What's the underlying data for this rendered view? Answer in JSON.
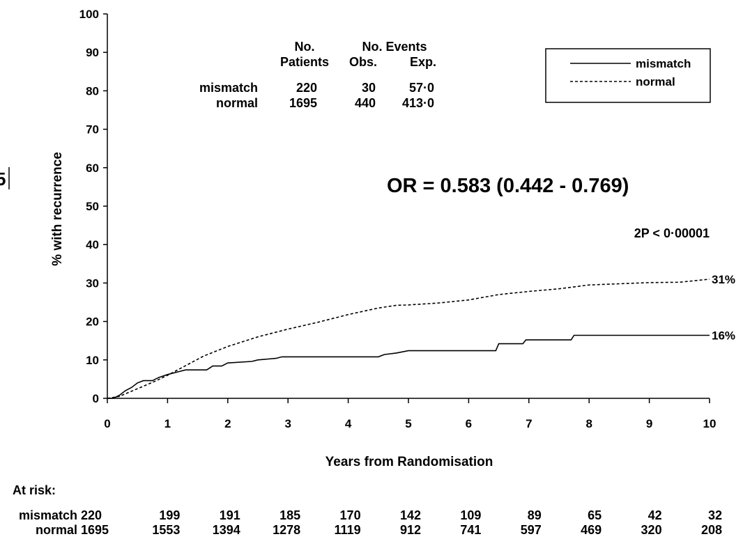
{
  "chart_data": {
    "type": "line",
    "title": "",
    "xlabel": "Years from Randomisation",
    "ylabel": "% with recurrence",
    "xlim": [
      0,
      10
    ],
    "ylim": [
      0,
      100
    ],
    "x_ticks": [
      "0",
      "1",
      "2",
      "3",
      "4",
      "5",
      "6",
      "7",
      "8",
      "9",
      "10"
    ],
    "y_ticks": [
      "0",
      "10",
      "20",
      "30",
      "40",
      "50",
      "60",
      "70",
      "80",
      "90",
      "100"
    ],
    "grid": false,
    "legend": {
      "placement": "top-right",
      "entries": [
        "mismatch",
        "normal"
      ]
    },
    "series": [
      {
        "name": "mismatch",
        "style": "solid",
        "end_label": "16%",
        "points": [
          [
            0,
            0
          ],
          [
            0.1,
            0
          ],
          [
            0.2,
            0.8
          ],
          [
            0.3,
            2.0
          ],
          [
            0.4,
            2.8
          ],
          [
            0.5,
            4.0
          ],
          [
            0.6,
            4.6
          ],
          [
            0.75,
            4.6
          ],
          [
            0.85,
            5.4
          ],
          [
            1.0,
            6.2
          ],
          [
            1.2,
            7.0
          ],
          [
            1.3,
            7.4
          ],
          [
            1.65,
            7.4
          ],
          [
            1.75,
            8.4
          ],
          [
            1.9,
            8.4
          ],
          [
            2.0,
            9.2
          ],
          [
            2.4,
            9.6
          ],
          [
            2.5,
            10.0
          ],
          [
            2.8,
            10.4
          ],
          [
            2.9,
            10.8
          ],
          [
            4.5,
            10.8
          ],
          [
            4.6,
            11.4
          ],
          [
            4.8,
            11.8
          ],
          [
            5.0,
            12.4
          ],
          [
            6.45,
            12.4
          ],
          [
            6.5,
            14.2
          ],
          [
            6.9,
            14.2
          ],
          [
            6.95,
            15.2
          ],
          [
            7.7,
            15.2
          ],
          [
            7.75,
            16.4
          ],
          [
            10,
            16.4
          ]
        ]
      },
      {
        "name": "normal",
        "style": "dashed",
        "end_label": "31%",
        "points": [
          [
            0,
            0
          ],
          [
            0.2,
            0.5
          ],
          [
            0.5,
            2.5
          ],
          [
            0.8,
            4.5
          ],
          [
            1.0,
            6.0
          ],
          [
            1.3,
            8.5
          ],
          [
            1.6,
            11.0
          ],
          [
            2.0,
            13.5
          ],
          [
            2.5,
            16.0
          ],
          [
            3.0,
            18.0
          ],
          [
            3.5,
            19.8
          ],
          [
            4.0,
            21.8
          ],
          [
            4.5,
            23.5
          ],
          [
            4.8,
            24.2
          ],
          [
            5.0,
            24.3
          ],
          [
            5.5,
            24.8
          ],
          [
            6.0,
            25.6
          ],
          [
            6.5,
            27.0
          ],
          [
            7.0,
            27.8
          ],
          [
            7.5,
            28.5
          ],
          [
            8.0,
            29.5
          ],
          [
            8.5,
            29.8
          ],
          [
            9.0,
            30.1
          ],
          [
            9.5,
            30.2
          ],
          [
            10,
            31.0
          ]
        ]
      }
    ],
    "stats_table": {
      "header_top": [
        "No.",
        "No. Events"
      ],
      "header_bottom": [
        "Patients",
        "Obs.",
        "Exp."
      ],
      "rows": [
        {
          "label": "mismatch",
          "patients": "220",
          "obs": "30",
          "exp": "57·0"
        },
        {
          "label": "normal",
          "patients": "1695",
          "obs": "440",
          "exp": "413·0"
        }
      ]
    },
    "annotations": {
      "odds_ratio": "OR = 0.583 (0.442 - 0.769)",
      "p_value": "2P < 0·00001",
      "edge_fragment": "5"
    },
    "at_risk": {
      "title": "At risk:",
      "rows": [
        {
          "label": "mismatch",
          "values": [
            "220",
            "199",
            "191",
            "185",
            "170",
            "142",
            "109",
            "89",
            "65",
            "42",
            "32"
          ]
        },
        {
          "label": "normal",
          "values": [
            "1695",
            "1553",
            "1394",
            "1278",
            "1119",
            "912",
            "741",
            "597",
            "469",
            "320",
            "208"
          ]
        }
      ]
    }
  }
}
